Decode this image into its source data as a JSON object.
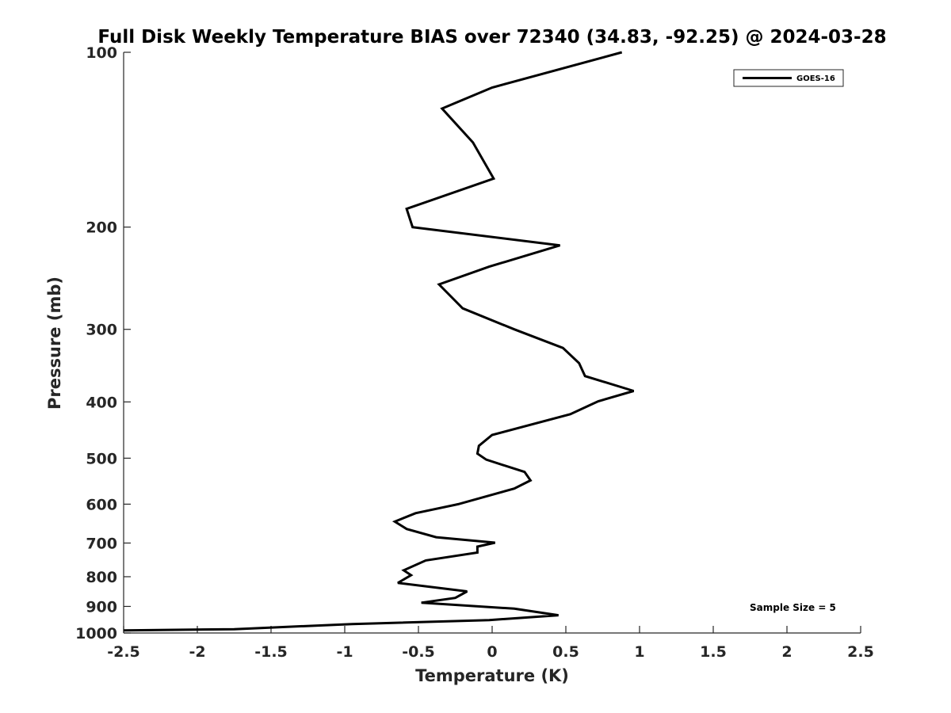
{
  "chart_data": {
    "type": "line",
    "title": "Full Disk Weekly Temperature BIAS over 72340 (34.83, -92.25) @ 2024-03-28",
    "xlabel": "Temperature (K)",
    "ylabel": "Pressure (mb)",
    "xlim": [
      -2.5,
      2.5
    ],
    "ylim": [
      100,
      1000
    ],
    "y_scale": "log",
    "y_reversed": true,
    "x_ticks": [
      "-2.5",
      "-2",
      "-1.5",
      "-1",
      "-0.5",
      "0",
      "0.5",
      "1",
      "1.5",
      "2",
      "2.5"
    ],
    "x_tick_values": [
      -2.5,
      -2,
      -1.5,
      -1,
      -0.5,
      0,
      0.5,
      1,
      1.5,
      2,
      2.5
    ],
    "y_ticks": [
      "100",
      "200",
      "300",
      "400",
      "500",
      "600",
      "700",
      "800",
      "900",
      "1000"
    ],
    "y_tick_values": [
      100,
      200,
      300,
      400,
      500,
      600,
      700,
      800,
      900,
      1000
    ],
    "grid": false,
    "legend_position": "top-right",
    "annotation": "Sample Size = 5",
    "line_color": "#000000",
    "series": [
      {
        "name": "GOES-16",
        "points": [
          [
            0.88,
            100
          ],
          [
            0.0,
            115
          ],
          [
            -0.34,
            125
          ],
          [
            -0.13,
            143
          ],
          [
            0.01,
            165
          ],
          [
            -0.58,
            186
          ],
          [
            -0.54,
            200
          ],
          [
            0.46,
            215
          ],
          [
            -0.02,
            234
          ],
          [
            -0.36,
            251
          ],
          [
            -0.2,
            276
          ],
          [
            0.15,
            300
          ],
          [
            0.48,
            323
          ],
          [
            0.59,
            343
          ],
          [
            0.63,
            361
          ],
          [
            0.96,
            383
          ],
          [
            0.72,
            399
          ],
          [
            0.53,
            420
          ],
          [
            0.0,
            456
          ],
          [
            -0.09,
            476
          ],
          [
            -0.1,
            491
          ],
          [
            -0.04,
            503
          ],
          [
            0.22,
            528
          ],
          [
            0.26,
            546
          ],
          [
            0.15,
            564
          ],
          [
            -0.23,
            600
          ],
          [
            -0.52,
            622
          ],
          [
            -0.66,
            643
          ],
          [
            -0.58,
            662
          ],
          [
            -0.38,
            684
          ],
          [
            0.02,
            699
          ],
          [
            -0.1,
            710
          ],
          [
            -0.1,
            727
          ],
          [
            -0.45,
            750
          ],
          [
            -0.6,
            780
          ],
          [
            -0.55,
            795
          ],
          [
            -0.64,
            820
          ],
          [
            -0.17,
            848
          ],
          [
            -0.25,
            870
          ],
          [
            -0.48,
            887
          ],
          [
            0.15,
            908
          ],
          [
            0.45,
            932
          ],
          [
            -0.02,
            950
          ],
          [
            -0.95,
            965
          ],
          [
            -1.75,
            985
          ],
          [
            -2.5,
            990
          ]
        ]
      }
    ]
  }
}
